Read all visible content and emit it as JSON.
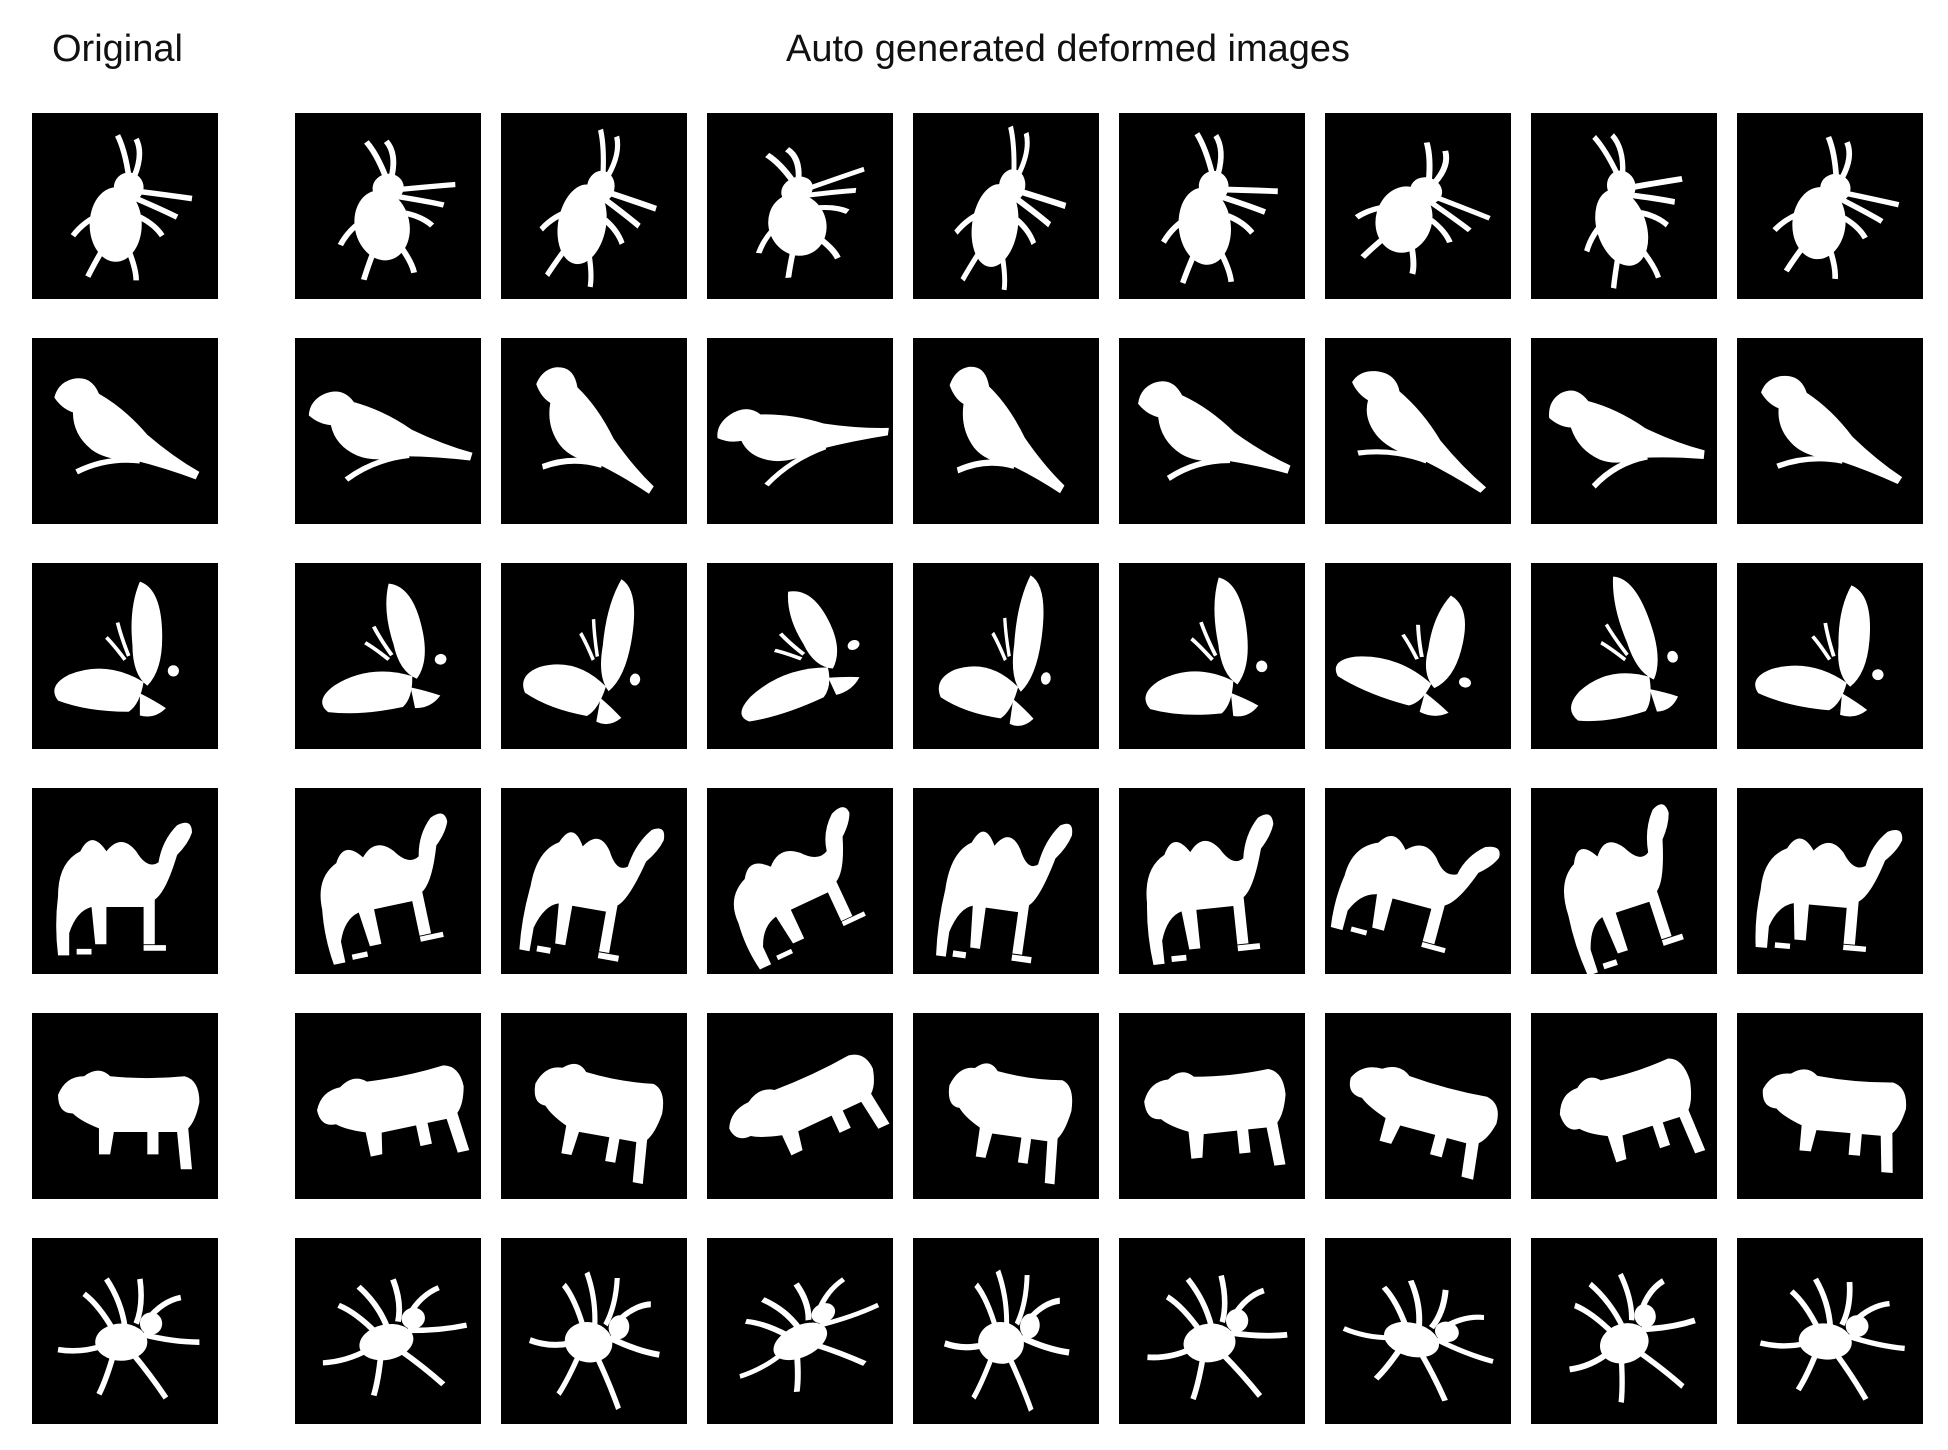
{
  "headers": {
    "original": "Original",
    "generated": "Auto generated deformed images"
  },
  "rows": [
    {
      "shape": "beetle-silhouette"
    },
    {
      "shape": "bird-silhouette"
    },
    {
      "shape": "butterfly-silhouette"
    },
    {
      "shape": "camel-silhouette"
    },
    {
      "shape": "lamb-silhouette"
    },
    {
      "shape": "spider-silhouette"
    }
  ],
  "deformed_per_row": 8,
  "colors": {
    "tile_background": "#000000",
    "silhouette": "#ffffff"
  }
}
